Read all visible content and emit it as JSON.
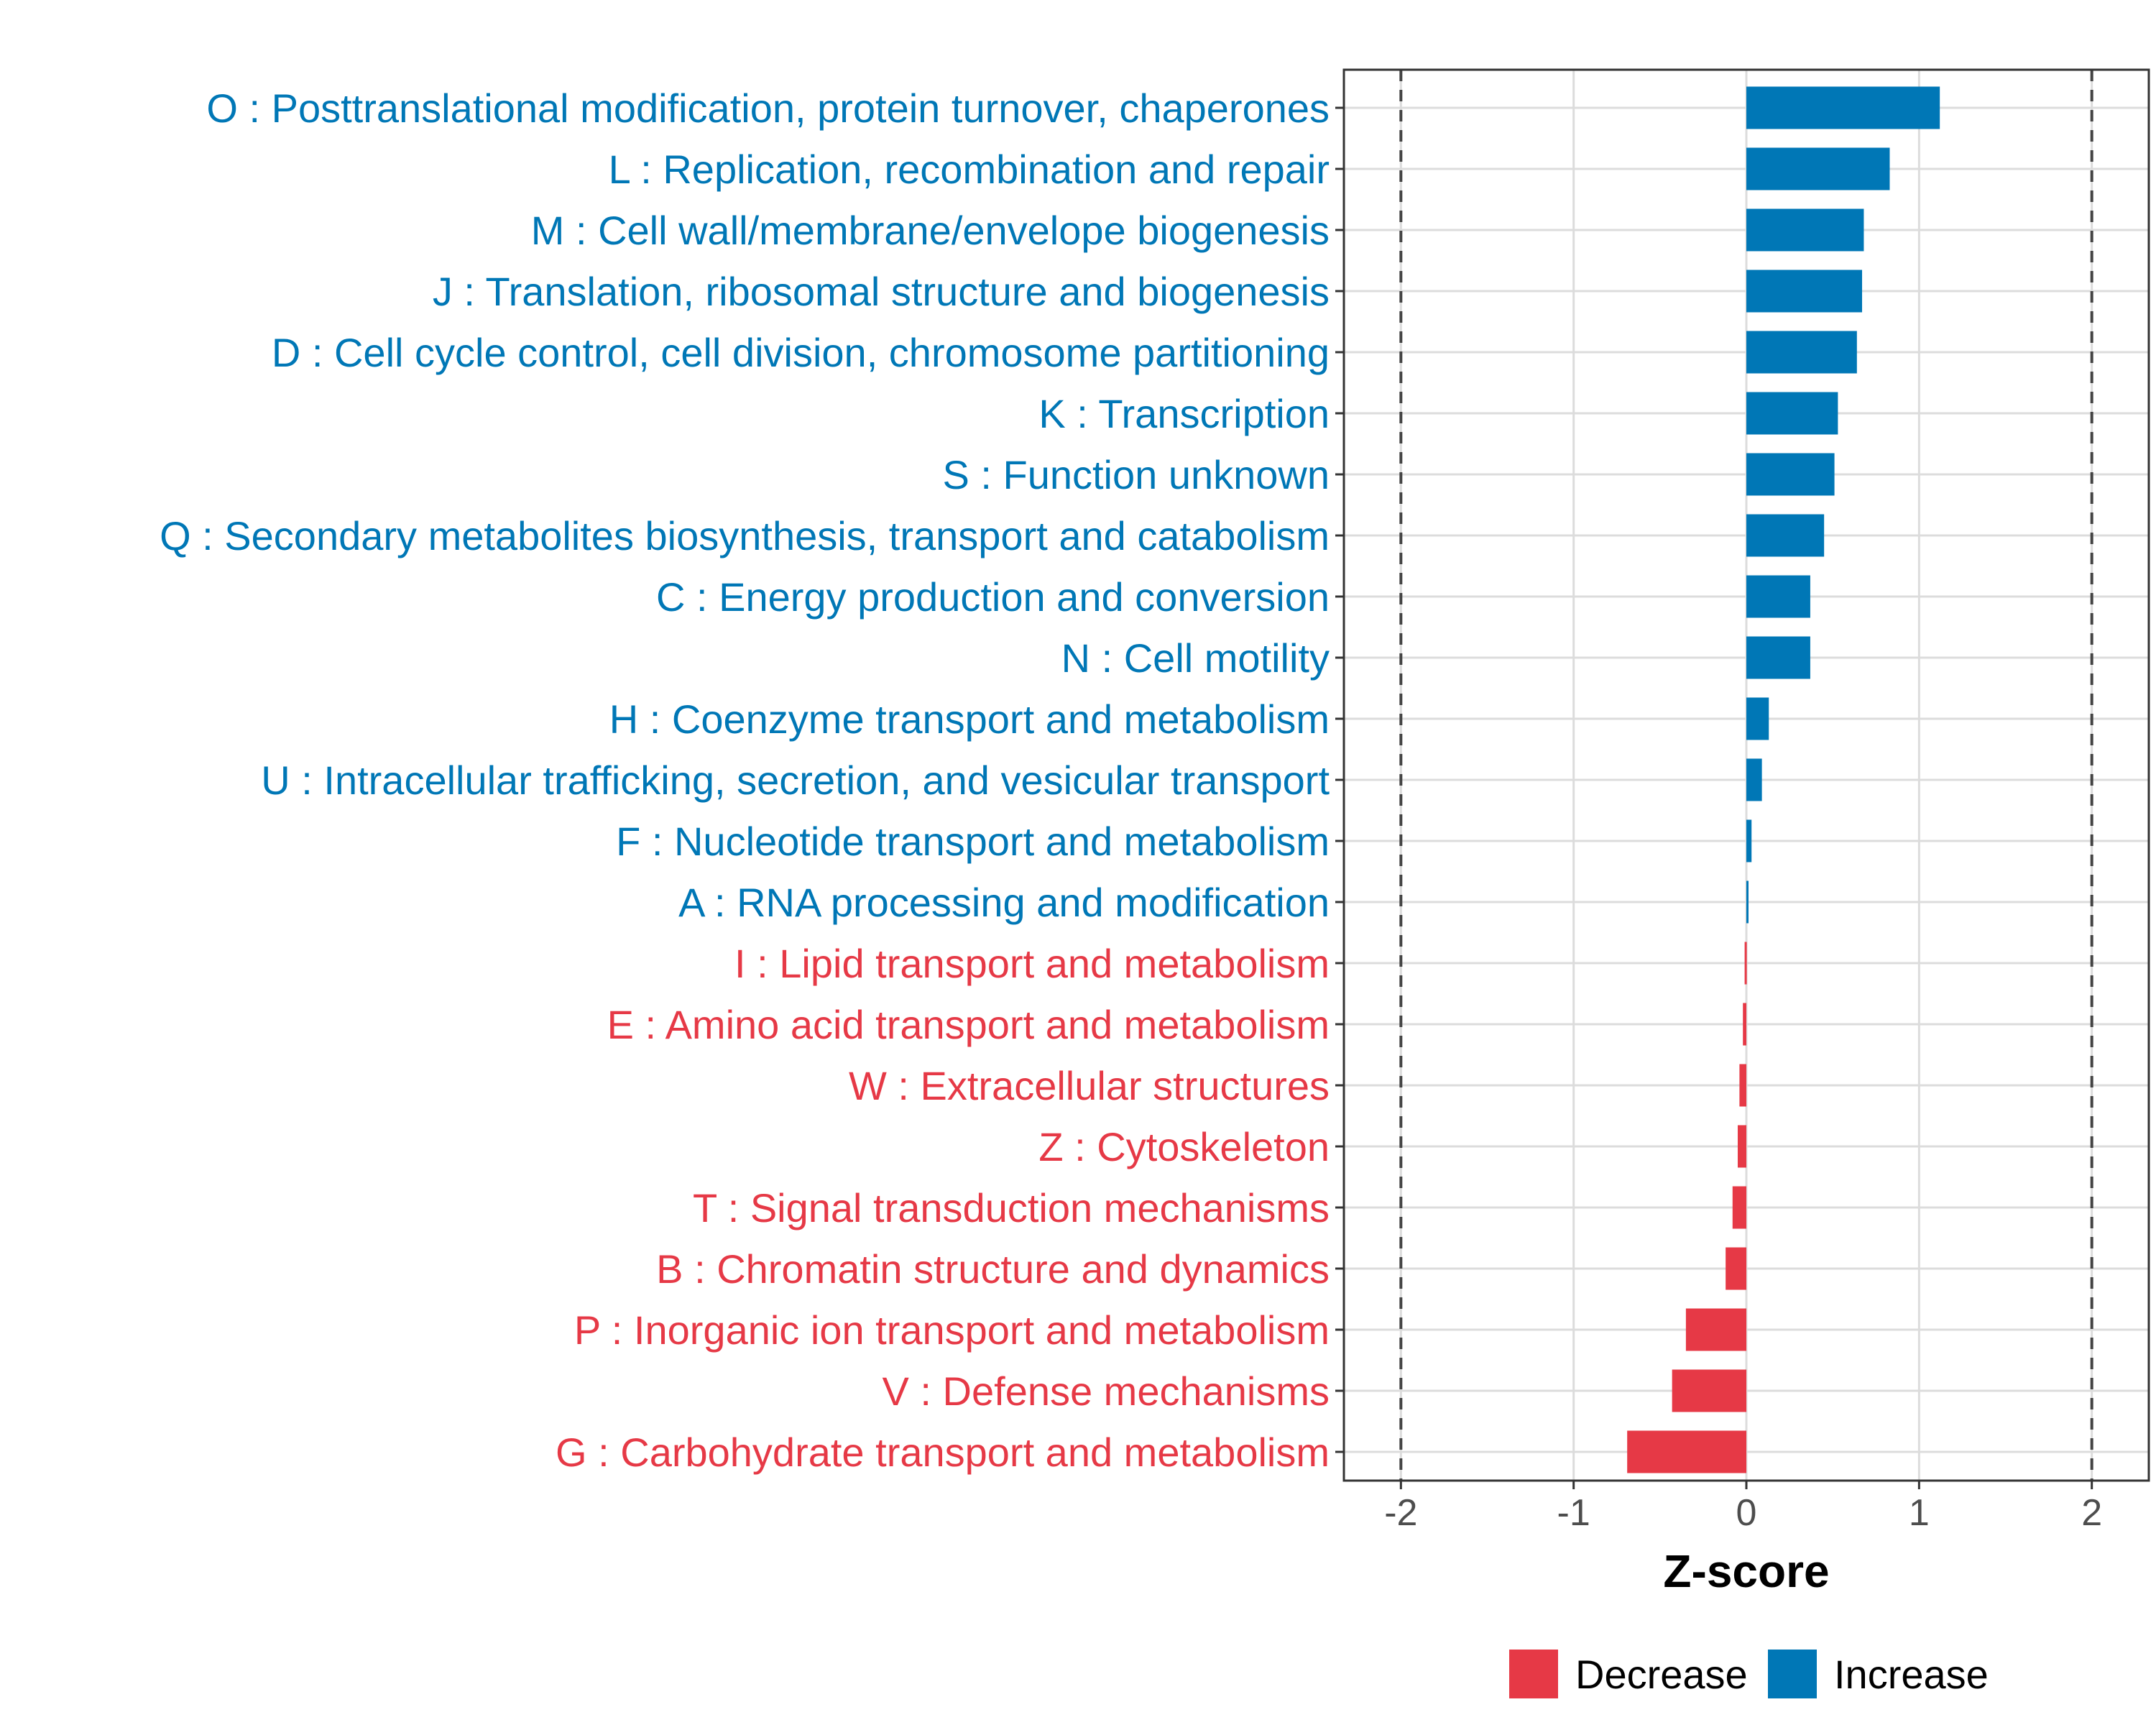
{
  "chart_data": {
    "type": "bar",
    "orientation": "horizontal",
    "xlabel": "Z-score",
    "xlim": [
      -2.33,
      2.33
    ],
    "xticks": [
      -2,
      -1,
      0,
      1,
      2
    ],
    "xtick_labels": [
      "-2",
      "-1",
      "0",
      "1",
      "2"
    ],
    "reference_lines": [
      -2,
      2
    ],
    "grid": true,
    "legend_position": "bottom",
    "colors": {
      "Decrease": "#e63946",
      "Increase": "#0077b6"
    },
    "legend": [
      {
        "name": "Decrease",
        "color": "#e63946"
      },
      {
        "name": "Increase",
        "color": "#0077b6"
      }
    ],
    "categories": [
      "O : Posttranslational modification, protein turnover, chaperones",
      "L : Replication, recombination and repair",
      "M : Cell wall/membrane/envelope biogenesis",
      "J : Translation, ribosomal structure and biogenesis",
      "D : Cell cycle control, cell division, chromosome partitioning",
      "K : Transcription",
      "S : Function unknown",
      "Q : Secondary metabolites biosynthesis, transport and catabolism",
      "C : Energy production and conversion",
      "N : Cell motility",
      "H : Coenzyme transport and metabolism",
      "U : Intracellular trafficking, secretion, and vesicular transport",
      "F : Nucleotide transport and metabolism",
      "A : RNA processing and modification",
      "I : Lipid transport and metabolism",
      "E : Amino acid transport and metabolism",
      "W : Extracellular structures",
      "Z : Cytoskeleton",
      "T : Signal transduction mechanisms",
      "B : Chromatin structure and dynamics",
      "P : Inorganic ion transport and metabolism",
      "V : Defense mechanisms",
      "G : Carbohydrate transport and metabolism"
    ],
    "values": [
      1.12,
      0.83,
      0.68,
      0.67,
      0.64,
      0.53,
      0.51,
      0.45,
      0.37,
      0.37,
      0.13,
      0.09,
      0.03,
      0.01,
      -0.01,
      -0.02,
      -0.04,
      -0.05,
      -0.08,
      -0.12,
      -0.35,
      -0.43,
      -0.69
    ],
    "groups": [
      "Increase",
      "Increase",
      "Increase",
      "Increase",
      "Increase",
      "Increase",
      "Increase",
      "Increase",
      "Increase",
      "Increase",
      "Increase",
      "Increase",
      "Increase",
      "Increase",
      "Decrease",
      "Decrease",
      "Decrease",
      "Decrease",
      "Decrease",
      "Decrease",
      "Decrease",
      "Decrease",
      "Decrease"
    ]
  }
}
